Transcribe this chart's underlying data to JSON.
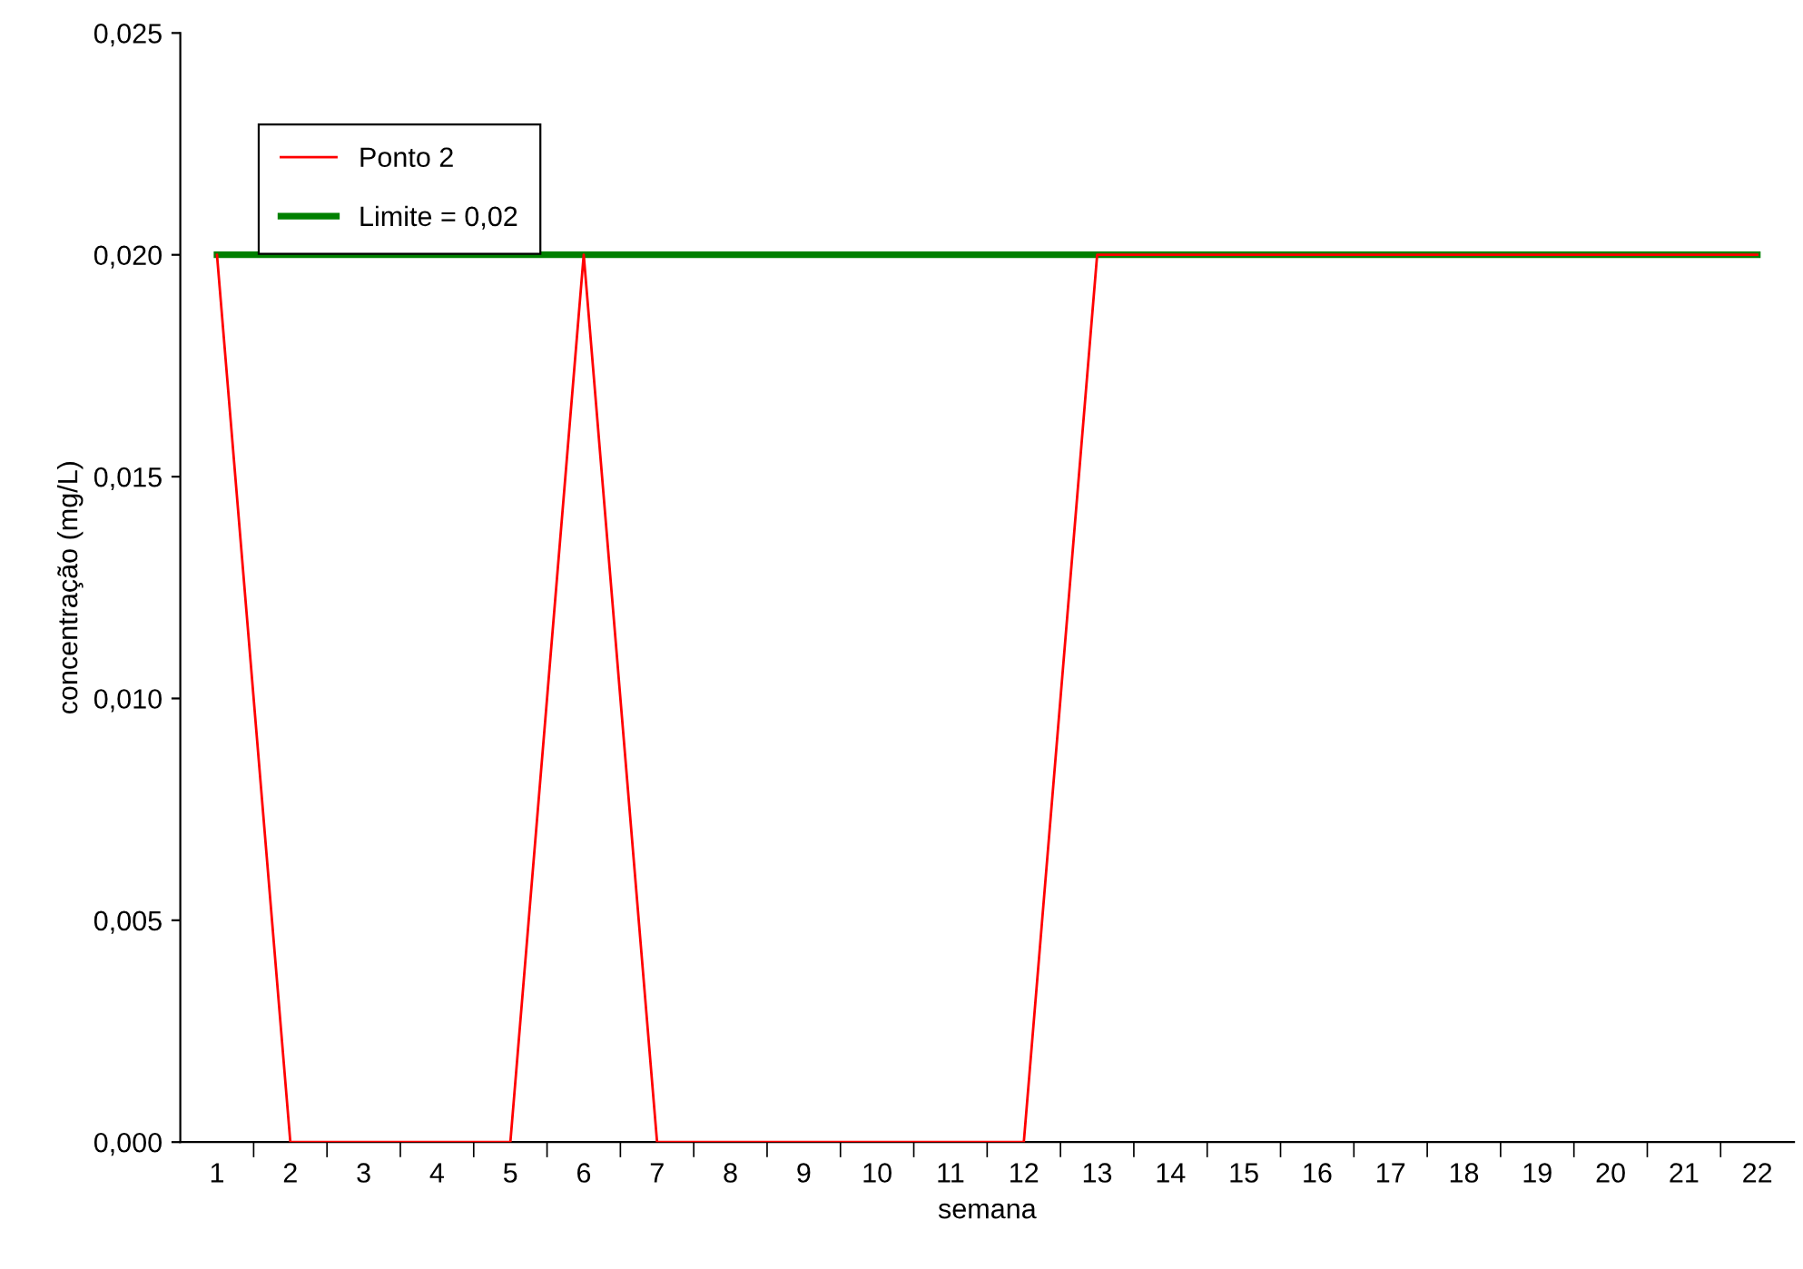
{
  "chart_data": {
    "type": "line",
    "xlabel": "semana",
    "ylabel": "concentração (mg/L)",
    "categories": [
      "1",
      "2",
      "3",
      "4",
      "5",
      "6",
      "7",
      "8",
      "9",
      "10",
      "11",
      "12",
      "13",
      "14",
      "15",
      "16",
      "17",
      "18",
      "19",
      "20",
      "21",
      "22"
    ],
    "series": [
      {
        "name": "Ponto 2",
        "color": "#ff0000",
        "values": [
          0.02,
          0,
          0,
          0,
          0,
          0.02,
          0,
          0,
          0,
          0,
          0,
          0,
          0.02,
          0.02,
          0.02,
          0.02,
          0.02,
          0.02,
          0.02,
          0.02,
          0.02,
          0.02
        ]
      },
      {
        "name": "Limite = 0,02",
        "color": "#008000",
        "values": [
          0.02,
          0.02,
          0.02,
          0.02,
          0.02,
          0.02,
          0.02,
          0.02,
          0.02,
          0.02,
          0.02,
          0.02,
          0.02,
          0.02,
          0.02,
          0.02,
          0.02,
          0.02,
          0.02,
          0.02,
          0.02,
          0.02
        ]
      }
    ],
    "ylim": [
      0,
      0.025
    ],
    "yticks": [
      {
        "value": 0,
        "label": "0,000"
      },
      {
        "value": 0.005,
        "label": "0,005"
      },
      {
        "value": 0.01,
        "label": "0,010"
      },
      {
        "value": 0.015,
        "label": "0,015"
      },
      {
        "value": 0.02,
        "label": "0,020"
      },
      {
        "value": 0.025,
        "label": "0,025"
      }
    ],
    "grid": false,
    "legend": "top left",
    "marker": "none",
    "line_style": "solid"
  }
}
